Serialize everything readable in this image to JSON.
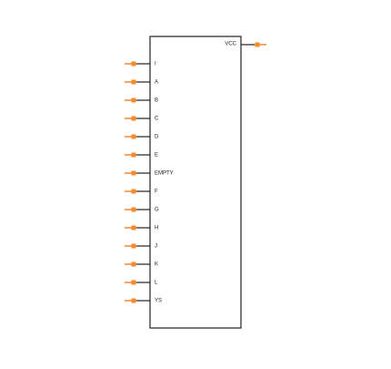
{
  "left_pins": [
    "I",
    "A",
    "B",
    "C",
    "D",
    "E",
    "EMPTY",
    "F",
    "G",
    "H",
    "J",
    "K",
    "L",
    "YS"
  ],
  "right_pins": [
    "VCC"
  ]
}
